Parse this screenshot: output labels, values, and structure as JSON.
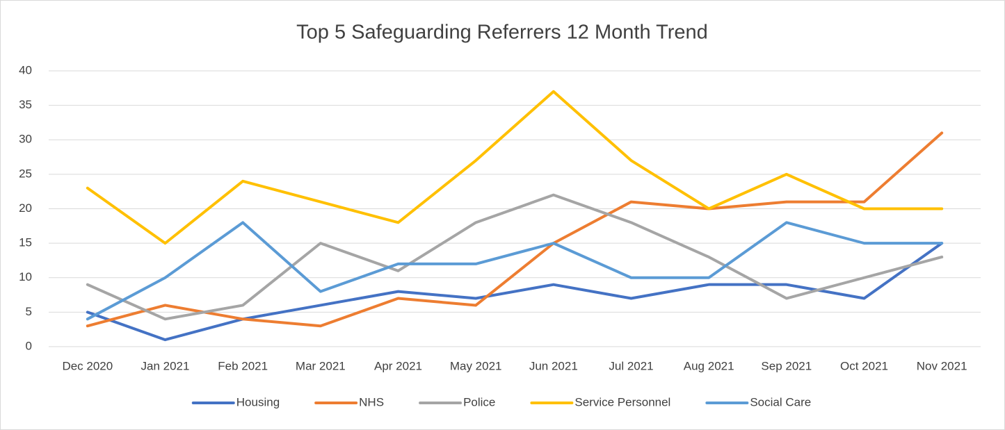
{
  "chart_data": {
    "type": "line",
    "title": "Top 5 Safeguarding Referrers 12 Month Trend",
    "categories": [
      "Dec 2020",
      "Jan 2021",
      "Feb 2021",
      "Mar 2021",
      "Apr 2021",
      "May 2021",
      "Jun 2021",
      "Jul 2021",
      "Aug 2021",
      "Sep 2021",
      "Oct 2021",
      "Nov 2021"
    ],
    "series": [
      {
        "name": "Housing",
        "color": "#4472c4",
        "values": [
          5,
          1,
          4,
          6,
          8,
          7,
          9,
          7,
          9,
          9,
          7,
          15
        ]
      },
      {
        "name": "NHS",
        "color": "#ed7d31",
        "values": [
          3,
          6,
          4,
          3,
          7,
          6,
          15,
          21,
          20,
          21,
          21,
          31
        ]
      },
      {
        "name": "Police",
        "color": "#a5a5a5",
        "values": [
          9,
          4,
          6,
          15,
          11,
          18,
          22,
          18,
          13,
          7,
          10,
          13
        ]
      },
      {
        "name": "Service Personnel",
        "color": "#ffc000",
        "values": [
          23,
          15,
          24,
          21,
          18,
          27,
          37,
          27,
          20,
          25,
          20,
          20
        ]
      },
      {
        "name": "Social Care",
        "color": "#5b9bd5",
        "values": [
          4,
          10,
          18,
          8,
          12,
          12,
          15,
          10,
          10,
          18,
          15,
          15
        ]
      }
    ],
    "ylim": [
      0,
      40
    ],
    "yticks": [
      0,
      5,
      10,
      15,
      20,
      25,
      30,
      35,
      40
    ],
    "grid": true,
    "legend": "bottom"
  }
}
